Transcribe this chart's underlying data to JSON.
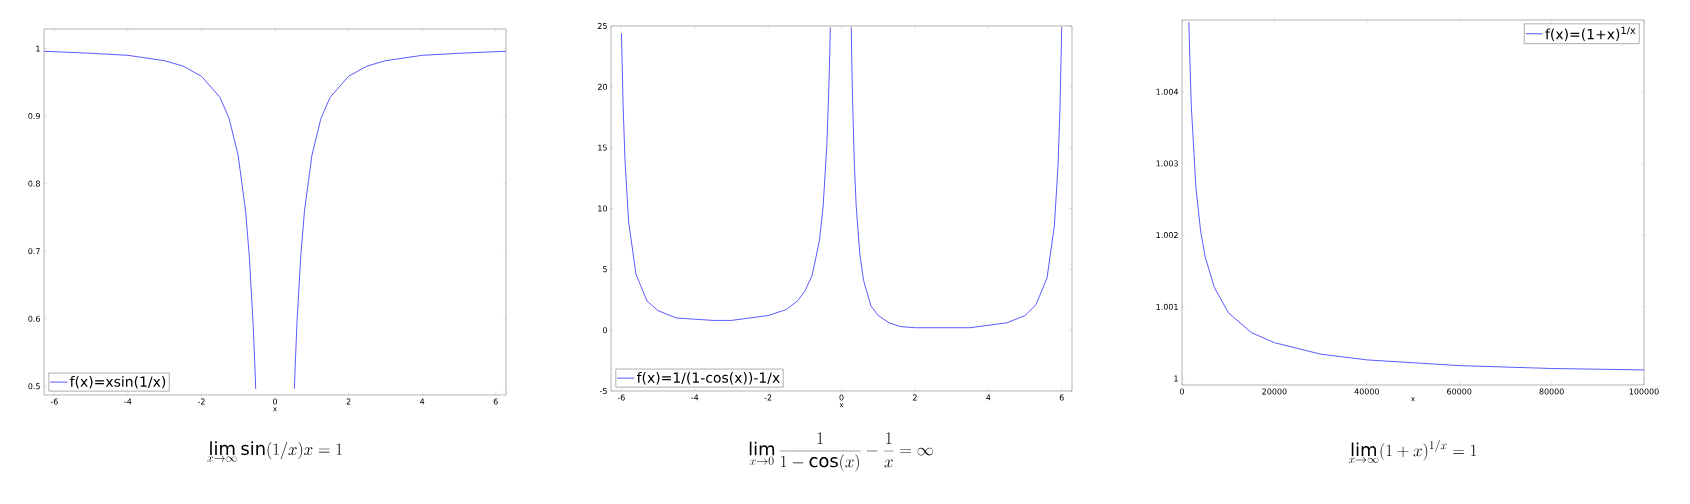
{
  "chart_data": [
    {
      "type": "line",
      "xlabel": "x",
      "legend": "bottom left",
      "xlim": [
        -6.28,
        6.28
      ],
      "ylim": [
        0.487,
        1.029
      ],
      "xticks": [
        -6,
        -4,
        -2,
        0,
        2,
        4,
        6
      ],
      "yticks": [
        0.5,
        0.6,
        0.7,
        0.8,
        0.9,
        1
      ],
      "x": [
        -6.28,
        -5,
        -4,
        -3,
        -2.5,
        -2,
        -1.5,
        -1.25,
        -1,
        -0.8,
        -0.7,
        -0.6,
        -0.55,
        -0.525,
        0,
        0.525,
        0.55,
        0.6,
        0.7,
        0.8,
        1,
        1.25,
        1.5,
        2,
        2.5,
        3,
        4,
        5,
        6.28
      ],
      "series": [
        {
          "name": "f(x)=xsin(1/x)",
          "color": "#3030ff",
          "values": [
            0.996,
            0.993,
            0.99,
            0.982,
            0.974,
            0.959,
            0.928,
            0.897,
            0.841,
            0.759,
            0.693,
            0.597,
            0.533,
            0.496,
            null,
            0.496,
            0.533,
            0.597,
            0.693,
            0.759,
            0.841,
            0.897,
            0.928,
            0.959,
            0.974,
            0.982,
            0.99,
            0.993,
            0.996
          ]
        }
      ],
      "annotations": [
        "\\lim_{x\\to\\infty} \\sin(1/x)x = 1"
      ]
    },
    {
      "type": "line",
      "xlabel": "x",
      "legend": "bottom left",
      "xlim": [
        -6.28,
        6.28
      ],
      "ylim": [
        -5,
        25
      ],
      "xticks": [
        -6,
        -4,
        -2,
        0,
        2,
        4,
        6
      ],
      "yticks": [
        -5,
        0,
        5,
        10,
        15,
        20,
        25
      ],
      "x": [
        -5.995,
        -5.95,
        -5.9,
        -5.8,
        -5.6,
        -5.3,
        -5,
        -4.5,
        -4,
        -3.5,
        -3,
        -2.5,
        -2,
        -1.5,
        -1.2,
        -1,
        -0.8,
        -0.6,
        -0.5,
        -0.4,
        -0.35,
        -0.32,
        -0.305,
        0,
        0.265,
        0.28,
        0.3,
        0.35,
        0.4,
        0.5,
        0.6,
        0.8,
        1,
        1.3,
        1.6,
        2,
        2.5,
        3,
        3.5,
        4,
        4.5,
        5,
        5.3,
        5.6,
        5.8,
        5.9,
        5.95,
        6
      ],
      "series": [
        {
          "name": "f(x)=1/(1-cos(x))-1/x",
          "color": "#3030ff",
          "values": [
            24.4,
            18.4,
            14.0,
            8.9,
            4.6,
            2.4,
            1.6,
            1.0,
            0.9,
            0.8,
            0.8,
            1.0,
            1.2,
            1.7,
            2.4,
            3.2,
            4.5,
            7.4,
            10.2,
            15.2,
            19.4,
            22.8,
            24.9,
            null,
            24.9,
            22.1,
            19.1,
            13.6,
            10.2,
            6.2,
            4.1,
            2.0,
            1.2,
            0.6,
            0.3,
            0.2,
            0.2,
            0.2,
            0.2,
            0.4,
            0.6,
            1.2,
            2.1,
            4.3,
            8.6,
            13.6,
            18.0,
            24.9
          ]
        }
      ],
      "annotations": [
        "\\lim_{x\\to 0} \\frac{1}{1-\\cos(x)} - \\frac{1}{x} = \\infty"
      ]
    },
    {
      "type": "line",
      "xlabel": "x",
      "legend": "top right",
      "xlim": [
        0,
        100000
      ],
      "ylim": [
        0.99991,
        1.005
      ],
      "xticks": [
        0,
        20000,
        40000,
        60000,
        80000,
        100000
      ],
      "yticks": [
        1,
        1.001,
        1.002,
        1.003,
        1.004
      ],
      "x": [
        1470,
        2000,
        3000,
        4000,
        5000,
        7000,
        10000,
        15000,
        20000,
        30000,
        40000,
        50000,
        60000,
        70000,
        80000,
        90000,
        100000
      ],
      "series": [
        {
          "name": "f(x)=(1+x)$^{1/x}$",
          "color": "#3030ff",
          "values": [
            1.00497,
            1.00381,
            1.00267,
            1.00207,
            1.0017,
            1.00127,
            1.00092,
            1.00064,
            1.0005,
            1.00034,
            1.00026,
            1.00022,
            1.00018,
            1.00016,
            1.00014,
            1.00013,
            1.00012
          ]
        }
      ],
      "annotations": [
        "\\lim_{x\\to\\infty} (1+x)^{1/x} = 1"
      ]
    }
  ]
}
